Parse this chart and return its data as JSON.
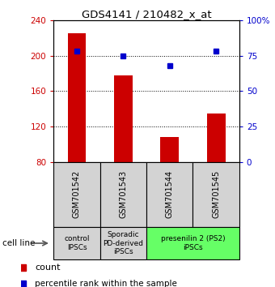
{
  "title": "GDS4141 / 210482_x_at",
  "samples": [
    "GSM701542",
    "GSM701543",
    "GSM701544",
    "GSM701545"
  ],
  "counts": [
    225,
    178,
    108,
    135
  ],
  "percentiles": [
    78,
    75,
    68,
    78
  ],
  "ylim_left": [
    80,
    240
  ],
  "ylim_right": [
    0,
    100
  ],
  "left_ticks": [
    80,
    120,
    160,
    200,
    240
  ],
  "right_ticks": [
    0,
    25,
    50,
    75,
    100
  ],
  "right_tick_labels": [
    "0",
    "25",
    "50",
    "75",
    "100%"
  ],
  "bar_color": "#cc0000",
  "dot_color": "#0000cc",
  "bar_bottom": 80,
  "cell_line_groups": [
    {
      "label": "control\nIPSCs",
      "start": 0,
      "end": 1,
      "color": "#d3d3d3"
    },
    {
      "label": "Sporadic\nPD-derived\niPSCs",
      "start": 1,
      "end": 2,
      "color": "#d3d3d3"
    },
    {
      "label": "presenilin 2 (PS2)\niPSCs",
      "start": 2,
      "end": 4,
      "color": "#66ff66"
    }
  ],
  "legend_count_label": "count",
  "legend_pct_label": "percentile rank within the sample",
  "cell_line_label": "cell line"
}
